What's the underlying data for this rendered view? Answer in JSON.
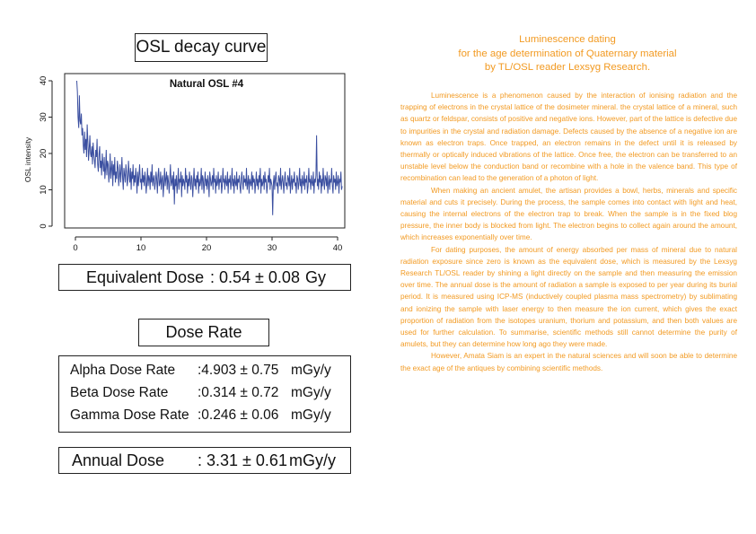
{
  "left": {
    "chart_title_box": "OSL decay curve",
    "equivalent_dose": {
      "label": "Equivalent Dose",
      "value": ": 0.54 ± 0.08",
      "unit": "Gy"
    },
    "dose_rate_title": "Dose Rate",
    "dose_rates": [
      {
        "label": "Alpha Dose Rate",
        "value": ":4.903 ± 0.75",
        "unit": "mGy/y"
      },
      {
        "label": "Beta Dose Rate",
        "value": ":0.314 ± 0.72",
        "unit": "mGy/y"
      },
      {
        "label": "Gamma Dose Rate",
        "value": ":0.246 ± 0.06",
        "unit": "mGy/y"
      }
    ],
    "annual_dose": {
      "label": "Annual Dose",
      "value": ": 3.31 ± 0.61",
      "unit": "mGy/y"
    }
  },
  "chart_data": {
    "type": "line",
    "title": "Natural OSL #4",
    "xlabel": "",
    "ylabel": "OSL intensity",
    "xlim": [
      0,
      40
    ],
    "ylim": [
      0,
      40
    ],
    "xticks": [
      0,
      10,
      20,
      30,
      40
    ],
    "yticks": [
      0,
      10,
      20,
      30,
      40
    ],
    "grid": false,
    "series_color": "#3b4fa0",
    "x_step": 0.1,
    "values": [
      40,
      37,
      30,
      27,
      36,
      29,
      28,
      31,
      25,
      27,
      22,
      20,
      26,
      21,
      24,
      19,
      28,
      23,
      18,
      21,
      25,
      20,
      19,
      22,
      17,
      23,
      20,
      18,
      16,
      21,
      19,
      24,
      17,
      15,
      20,
      22,
      16,
      18,
      14,
      20,
      17,
      15,
      19,
      13,
      16,
      21,
      14,
      18,
      17,
      12,
      15,
      20,
      13,
      16,
      18,
      11,
      17,
      14,
      19,
      12,
      15,
      13,
      18,
      16,
      11,
      14,
      17,
      12,
      15,
      19,
      13,
      10,
      16,
      14,
      12,
      17,
      15,
      11,
      13,
      18,
      14,
      12,
      16,
      10,
      15,
      13,
      17,
      11,
      14,
      12,
      16,
      13,
      9,
      15,
      11,
      14,
      17,
      12,
      13,
      10,
      16,
      12,
      14,
      11,
      15,
      13,
      9,
      12,
      16,
      11,
      14,
      13,
      10,
      15,
      12,
      17,
      11,
      13,
      14,
      10,
      12,
      15,
      13,
      9,
      14,
      16,
      11,
      12,
      15,
      10,
      13,
      14,
      8,
      12,
      16,
      11,
      13,
      15,
      10,
      14,
      12,
      9,
      13,
      17,
      11,
      12,
      14,
      10,
      15,
      6,
      13,
      11,
      14,
      9,
      12,
      16,
      10,
      13,
      12,
      15,
      8,
      14,
      11,
      13,
      12,
      10,
      16,
      12,
      14,
      9,
      13,
      11,
      15,
      12,
      10,
      14,
      13,
      8,
      12,
      16,
      11,
      13,
      10,
      14,
      12,
      15,
      9,
      13,
      11,
      12,
      16,
      10,
      14,
      13,
      9,
      12,
      15,
      11,
      13,
      10,
      14,
      12,
      8,
      15,
      13,
      11,
      12,
      14,
      10,
      16,
      12,
      13,
      9,
      14,
      11,
      12,
      15,
      10,
      13,
      12,
      14,
      9,
      11,
      16,
      12,
      13,
      10,
      14,
      12,
      11,
      15,
      9,
      13,
      12,
      14,
      10,
      12,
      16,
      11,
      13,
      9,
      14,
      12,
      11,
      15,
      10,
      13,
      12,
      14,
      11,
      9,
      13,
      15,
      12,
      10,
      14,
      12,
      13,
      11,
      16,
      10,
      12,
      14,
      9,
      13,
      12,
      11,
      15,
      10,
      14,
      12,
      13,
      9,
      12,
      15,
      11,
      13,
      10,
      14,
      12,
      16,
      9,
      13,
      11,
      12,
      14,
      10,
      15,
      12,
      13,
      9,
      11,
      14,
      12,
      16,
      10,
      13,
      12,
      11,
      3,
      12,
      14,
      10,
      13,
      15,
      11,
      12,
      9,
      14,
      13,
      11,
      16,
      10,
      12,
      14,
      12,
      9,
      13,
      15,
      11,
      12,
      10,
      14,
      13,
      11,
      16,
      9,
      12,
      14,
      10,
      13,
      12,
      15,
      11,
      12,
      9,
      14,
      13,
      10,
      12,
      16,
      11,
      13,
      9,
      14,
      12,
      11,
      15,
      10,
      13,
      12,
      14,
      9,
      11,
      16,
      12,
      13,
      10,
      14,
      12,
      11,
      15,
      9,
      13,
      12,
      14,
      25,
      11,
      13,
      10,
      15,
      12,
      14,
      9,
      13,
      11,
      16,
      12,
      10,
      14,
      13,
      11,
      15,
      9,
      12,
      14,
      10,
      13,
      12,
      16,
      11,
      9,
      14,
      12,
      13,
      10,
      15,
      11,
      12,
      14,
      9,
      13,
      12,
      15,
      10,
      11
    ]
  },
  "right": {
    "title_lines": [
      "Luminescence dating",
      "for the age determination of Quaternary material",
      "by TL/OSL reader Lexsyg Research."
    ],
    "paragraphs": [
      "Luminescence is a phenomenon caused by the interaction of ionising radiation and the trapping of electrons in the crystal lattice of the dosimeter mineral. the crystal lattice of a mineral, such as quartz or feldspar, consists of positive and negative ions. However, part of the lattice is defective due to impurities in the crystal and radiation damage. Defects caused by the absence of a negative ion are known as electron traps. Once trapped, an electron remains in the defect until it is released by thermally or optically induced vibrations of the lattice. Once free, the electron can be transferred to an unstable level below the conduction band or recombine with a hole in the valence band. This type of recombination can lead to the generation of a photon of light.",
      "When making an ancient amulet, the artisan provides a bowl, herbs, minerals and specific material and cuts it precisely. During the process, the sample comes into contact with light and heat, causing the internal electrons of the electron trap to break. When the sample is in the fixed blog pressure, the inner body is blocked from light. The electron begins to collect again around the amount, which increases exponentially over time.",
      "For dating purposes, the amount of energy absorbed per mass of mineral due to natural radiation exposure since zero is known as the equivalent dose, which is measured by the Lexsyg Research TL/OSL reader by shining a light directly on the sample and then measuring the emission over time. The annual dose is the amount of radiation a sample is exposed to per year during its burial period. It is measured using ICP-MS (inductively coupled plasma mass spectrometry) by sublimating and ionizing the sample with laser energy to then measure the ion current, which gives the exact proportion of radiation from the isotopes uranium, thorium and potassium, and then both values are used for further calculation. To summarise, scientific methods still cannot determine the purity of amulets, but they can determine how long ago they were made.",
      "However, Amata Siam is an expert in the natural sciences and will soon be able to determine the exact age of the antiques by combining scientific methods."
    ]
  }
}
